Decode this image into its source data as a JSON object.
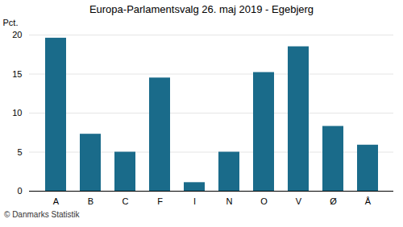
{
  "chart_data": {
    "type": "bar",
    "title": "Europa-Parlamentsvalg 26. maj 2019 - Egebjerg",
    "categories": [
      "A",
      "B",
      "C",
      "F",
      "I",
      "N",
      "O",
      "V",
      "Ø",
      "Å"
    ],
    "values": [
      19.6,
      7.3,
      5.0,
      14.5,
      1.1,
      5.0,
      15.2,
      18.5,
      8.3,
      5.9
    ],
    "color": "#1a6b8a",
    "ylabel": "Pct.",
    "ylim": [
      0,
      20
    ],
    "yticks": [
      0,
      5,
      10,
      15,
      20
    ],
    "grid": true,
    "footer": "© Danmarks Statistik"
  }
}
